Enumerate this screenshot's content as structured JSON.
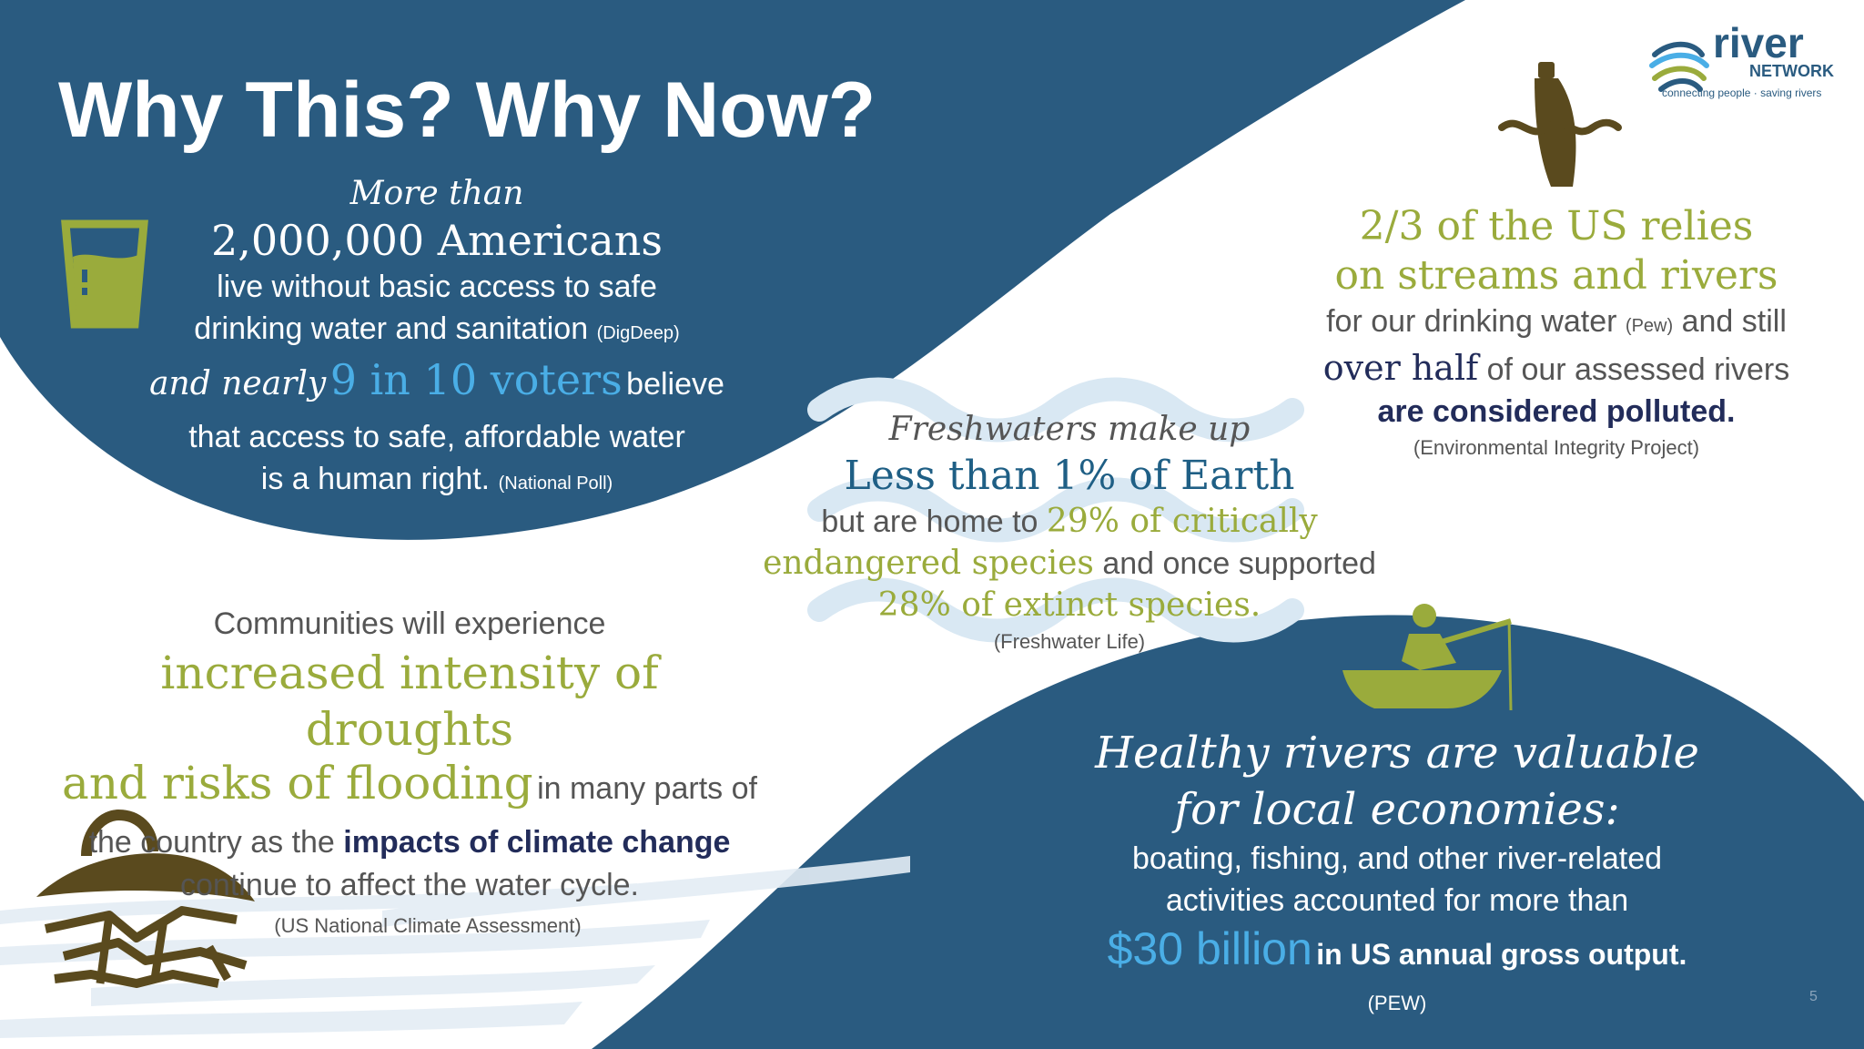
{
  "title": "Why This? Why Now?",
  "logo": {
    "wordmark": "river",
    "sub": "NETWORK",
    "tagline": "connecting people · saving rivers"
  },
  "page_number": "5",
  "block1": {
    "l1": "More than",
    "l2": "2,000,000 Americans",
    "l3": "live without basic access to safe",
    "l4": "drinking water and sanitation",
    "src1": "(DigDeep)",
    "l5a": "and nearly",
    "l5b": "9 in 10 voters",
    "l5c": "believe",
    "l6": "that access to safe, affordable water",
    "l7": "is a human right.",
    "src2": "(National Poll)"
  },
  "block2": {
    "l1": "2/3 of the US relies",
    "l2": "on streams and rivers",
    "l3a": "for our drinking water",
    "l3src": "(Pew)",
    "l3b": "and still",
    "l4a": "over half",
    "l4b": "of our assessed rivers",
    "l5": "are considered polluted.",
    "src": "(Environmental Integrity Project)"
  },
  "block3": {
    "l1": "Freshwaters make up",
    "l2": "Less than 1% of Earth",
    "l3a": "but are home to",
    "l3b": "29% of critically",
    "l4a": "endangered species",
    "l4b": "and once supported",
    "l5": "28% of extinct species.",
    "src": "(Freshwater Life)"
  },
  "block4": {
    "l1": "Communities will experience",
    "l2": "increased intensity of droughts",
    "l3a": "and risks of flooding",
    "l3b": "in many parts of",
    "l4a": "the country as the",
    "l4b": "impacts of climate change",
    "l5": "continue to affect the water cycle.",
    "src": "(US National Climate Assessment)"
  },
  "block5": {
    "l1": "Healthy rivers are valuable",
    "l2": "for local economies:",
    "l3": "boating, fishing, and other river-related",
    "l4": "activities accounted for more than",
    "l5a": "$30 billion",
    "l5b": "in US annual gross output.",
    "src": "(PEW)"
  },
  "colors": {
    "navy_blue": "#2a5b80",
    "olive_green": "#9aab3c",
    "bright_blue": "#4aaee6",
    "dark_brown": "#5a4a1e"
  },
  "icons": [
    "water-glass-icon",
    "bottle-in-water-icon",
    "wave-icon",
    "drought-icon",
    "fishing-boat-icon"
  ]
}
